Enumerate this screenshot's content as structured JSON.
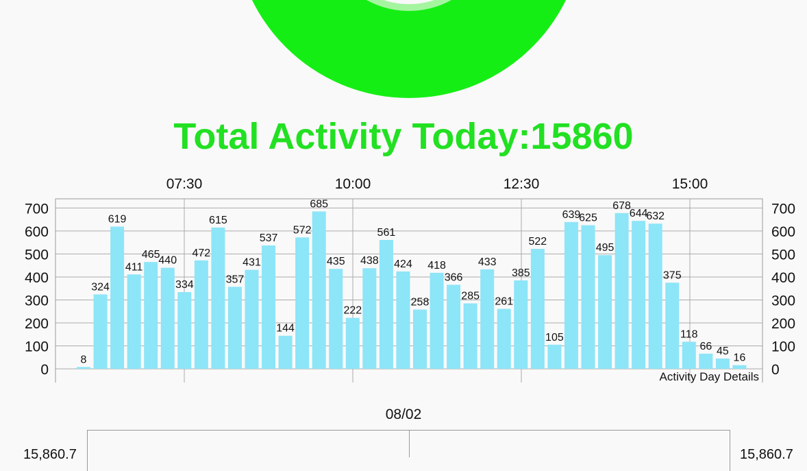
{
  "header": {
    "total_label": "Total Activity Today:15860",
    "ring_color": "#15ee15",
    "ring_inner_color": "#a5f5a0",
    "title_color": "#22e022"
  },
  "chart_data": {
    "type": "bar",
    "values": [
      8,
      324,
      619,
      411,
      465,
      440,
      334,
      472,
      615,
      357,
      431,
      537,
      144,
      572,
      685,
      435,
      222,
      438,
      561,
      424,
      258,
      418,
      366,
      285,
      433,
      261,
      385,
      522,
      105,
      639,
      625,
      495,
      678,
      644,
      632,
      375,
      118,
      66,
      45,
      16
    ],
    "x_tick_labels": [
      "07:30",
      "10:00",
      "12:30",
      "15:00"
    ],
    "y_ticks": [
      0,
      100,
      200,
      300,
      400,
      500,
      600,
      700
    ],
    "ylim": [
      0,
      740
    ],
    "bar_color": "#8de5f8",
    "grid": true,
    "description_label": "Activity Day Details"
  },
  "bottom": {
    "date_label": "08/02",
    "left_value": "15,860.7",
    "right_value": "15,860.7"
  }
}
